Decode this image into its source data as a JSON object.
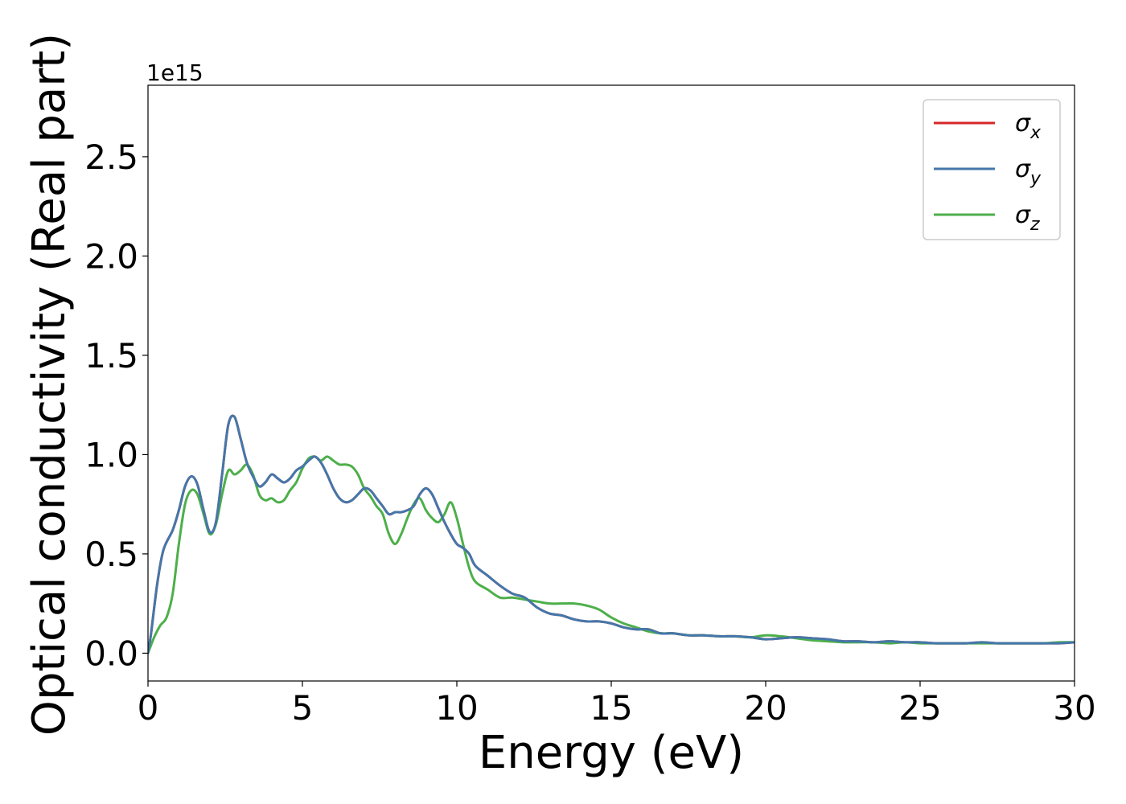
{
  "chart_data": {
    "type": "line",
    "xlabel": "Energy (eV)",
    "ylabel": "Optical conductivity (Real part)",
    "y_offset_label": "1e15",
    "xlim": [
      0,
      30
    ],
    "ylim": [
      -0.14,
      2.86
    ],
    "x_ticks": [
      0,
      5,
      10,
      15,
      20,
      25,
      30
    ],
    "x_tick_labels": [
      "0",
      "5",
      "10",
      "15",
      "20",
      "25",
      "30"
    ],
    "y_ticks": [
      0.0,
      0.5,
      1.0,
      1.5,
      2.0,
      2.5
    ],
    "y_tick_labels": [
      "0.0",
      "0.5",
      "1.0",
      "1.5",
      "2.0",
      "2.5"
    ],
    "grid": false,
    "legend_position": "top-right",
    "series": [
      {
        "name": "σx",
        "legend_base": "σ",
        "legend_sub": "x",
        "color": "#d62728",
        "x": [
          0,
          0.1,
          0.3,
          0.5,
          0.8,
          1.0,
          1.2,
          1.4,
          1.6,
          1.8,
          2.0,
          2.2,
          2.4,
          2.6,
          2.8,
          3.0,
          3.2,
          3.4,
          3.6,
          3.8,
          4.0,
          4.2,
          4.4,
          4.6,
          4.8,
          5.0,
          5.2,
          5.4,
          5.6,
          5.8,
          6.0,
          6.2,
          6.4,
          6.6,
          6.8,
          7.0,
          7.2,
          7.4,
          7.6,
          7.8,
          8.0,
          8.2,
          8.4,
          8.6,
          8.8,
          9.0,
          9.2,
          9.4,
          9.6,
          9.8,
          10.0,
          10.2,
          10.4,
          10.6,
          11.0,
          11.4,
          11.8,
          12.2,
          12.6,
          13.0,
          13.4,
          13.8,
          14.2,
          14.6,
          15.0,
          15.4,
          15.8,
          16.2,
          16.6,
          17.0,
          17.5,
          18.0,
          18.5,
          19.0,
          19.5,
          20.0,
          20.5,
          21.0,
          21.5,
          22.0,
          22.5,
          23.0,
          23.5,
          24.0,
          24.5,
          25.0,
          25.5,
          26.0,
          26.5,
          27.0,
          27.5,
          28.0,
          28.5,
          29.0,
          29.5,
          30.0
        ],
        "values": [
          0.0,
          0.1,
          0.35,
          0.52,
          0.62,
          0.72,
          0.84,
          0.89,
          0.85,
          0.72,
          0.61,
          0.66,
          0.9,
          1.15,
          1.19,
          1.08,
          0.96,
          0.89,
          0.84,
          0.86,
          0.9,
          0.88,
          0.86,
          0.88,
          0.92,
          0.94,
          0.97,
          0.99,
          0.96,
          0.9,
          0.83,
          0.78,
          0.76,
          0.77,
          0.8,
          0.83,
          0.82,
          0.78,
          0.74,
          0.7,
          0.71,
          0.71,
          0.72,
          0.74,
          0.8,
          0.83,
          0.8,
          0.73,
          0.66,
          0.6,
          0.55,
          0.53,
          0.5,
          0.44,
          0.39,
          0.34,
          0.3,
          0.28,
          0.23,
          0.2,
          0.19,
          0.17,
          0.16,
          0.16,
          0.15,
          0.13,
          0.12,
          0.12,
          0.1,
          0.1,
          0.09,
          0.09,
          0.085,
          0.085,
          0.08,
          0.07,
          0.075,
          0.08,
          0.075,
          0.07,
          0.06,
          0.06,
          0.055,
          0.06,
          0.055,
          0.055,
          0.05,
          0.05,
          0.05,
          0.055,
          0.05,
          0.05,
          0.05,
          0.05,
          0.05,
          0.055
        ]
      },
      {
        "name": "σy",
        "legend_base": "σ",
        "legend_sub": "y",
        "color": "#4477aa",
        "x": [
          0,
          0.1,
          0.3,
          0.5,
          0.8,
          1.0,
          1.2,
          1.4,
          1.6,
          1.8,
          2.0,
          2.2,
          2.4,
          2.6,
          2.8,
          3.0,
          3.2,
          3.4,
          3.6,
          3.8,
          4.0,
          4.2,
          4.4,
          4.6,
          4.8,
          5.0,
          5.2,
          5.4,
          5.6,
          5.8,
          6.0,
          6.2,
          6.4,
          6.6,
          6.8,
          7.0,
          7.2,
          7.4,
          7.6,
          7.8,
          8.0,
          8.2,
          8.4,
          8.6,
          8.8,
          9.0,
          9.2,
          9.4,
          9.6,
          9.8,
          10.0,
          10.2,
          10.4,
          10.6,
          11.0,
          11.4,
          11.8,
          12.2,
          12.6,
          13.0,
          13.4,
          13.8,
          14.2,
          14.6,
          15.0,
          15.4,
          15.8,
          16.2,
          16.6,
          17.0,
          17.5,
          18.0,
          18.5,
          19.0,
          19.5,
          20.0,
          20.5,
          21.0,
          21.5,
          22.0,
          22.5,
          23.0,
          23.5,
          24.0,
          24.5,
          25.0,
          25.5,
          26.0,
          26.5,
          27.0,
          27.5,
          28.0,
          28.5,
          29.0,
          29.5,
          30.0
        ],
        "values": [
          0.0,
          0.1,
          0.35,
          0.52,
          0.62,
          0.72,
          0.84,
          0.89,
          0.85,
          0.72,
          0.61,
          0.66,
          0.9,
          1.15,
          1.19,
          1.08,
          0.96,
          0.89,
          0.84,
          0.86,
          0.9,
          0.88,
          0.86,
          0.88,
          0.92,
          0.94,
          0.97,
          0.99,
          0.96,
          0.9,
          0.83,
          0.78,
          0.76,
          0.77,
          0.8,
          0.83,
          0.82,
          0.78,
          0.74,
          0.7,
          0.71,
          0.71,
          0.72,
          0.74,
          0.8,
          0.83,
          0.8,
          0.73,
          0.66,
          0.6,
          0.55,
          0.53,
          0.5,
          0.44,
          0.39,
          0.34,
          0.3,
          0.28,
          0.23,
          0.2,
          0.19,
          0.17,
          0.16,
          0.16,
          0.15,
          0.13,
          0.12,
          0.12,
          0.1,
          0.1,
          0.09,
          0.09,
          0.085,
          0.085,
          0.08,
          0.07,
          0.075,
          0.08,
          0.075,
          0.07,
          0.06,
          0.06,
          0.055,
          0.06,
          0.055,
          0.055,
          0.05,
          0.05,
          0.05,
          0.055,
          0.05,
          0.05,
          0.05,
          0.05,
          0.05,
          0.055
        ]
      },
      {
        "name": "σz",
        "legend_base": "σ",
        "legend_sub": "z",
        "color": "#4daf4a",
        "x": [
          0,
          0.2,
          0.4,
          0.6,
          0.8,
          1.0,
          1.2,
          1.4,
          1.6,
          1.8,
          2.0,
          2.2,
          2.4,
          2.6,
          2.8,
          3.0,
          3.2,
          3.4,
          3.6,
          3.8,
          4.0,
          4.2,
          4.4,
          4.6,
          4.8,
          5.0,
          5.2,
          5.4,
          5.6,
          5.8,
          6.0,
          6.2,
          6.4,
          6.6,
          6.8,
          7.0,
          7.2,
          7.4,
          7.6,
          7.8,
          8.0,
          8.2,
          8.4,
          8.6,
          8.8,
          9.0,
          9.2,
          9.4,
          9.6,
          9.8,
          10.0,
          10.2,
          10.4,
          10.6,
          11.0,
          11.4,
          11.8,
          12.2,
          12.6,
          13.0,
          13.4,
          13.8,
          14.2,
          14.6,
          15.0,
          15.4,
          15.8,
          16.2,
          16.6,
          17.0,
          17.5,
          18.0,
          18.5,
          19.0,
          19.5,
          20.0,
          20.5,
          21.0,
          21.5,
          22.0,
          22.5,
          23.0,
          23.5,
          24.0,
          24.5,
          25.0,
          25.5,
          26.0,
          26.5,
          27.0,
          27.5,
          28.0,
          28.5,
          29.0,
          29.5,
          30.0
        ],
        "values": [
          0.0,
          0.08,
          0.14,
          0.18,
          0.3,
          0.55,
          0.75,
          0.82,
          0.8,
          0.7,
          0.6,
          0.65,
          0.8,
          0.92,
          0.9,
          0.92,
          0.95,
          0.9,
          0.8,
          0.77,
          0.78,
          0.76,
          0.77,
          0.82,
          0.86,
          0.93,
          0.98,
          0.99,
          0.97,
          0.99,
          0.97,
          0.95,
          0.95,
          0.94,
          0.9,
          0.83,
          0.79,
          0.74,
          0.7,
          0.6,
          0.55,
          0.6,
          0.68,
          0.75,
          0.78,
          0.72,
          0.68,
          0.66,
          0.7,
          0.76,
          0.68,
          0.55,
          0.43,
          0.36,
          0.32,
          0.28,
          0.28,
          0.27,
          0.26,
          0.25,
          0.25,
          0.25,
          0.24,
          0.22,
          0.18,
          0.15,
          0.13,
          0.11,
          0.1,
          0.1,
          0.09,
          0.09,
          0.085,
          0.085,
          0.08,
          0.09,
          0.085,
          0.075,
          0.065,
          0.06,
          0.055,
          0.055,
          0.055,
          0.05,
          0.055,
          0.05,
          0.05,
          0.05,
          0.05,
          0.05,
          0.05,
          0.05,
          0.05,
          0.05,
          0.055,
          0.055
        ]
      }
    ]
  }
}
